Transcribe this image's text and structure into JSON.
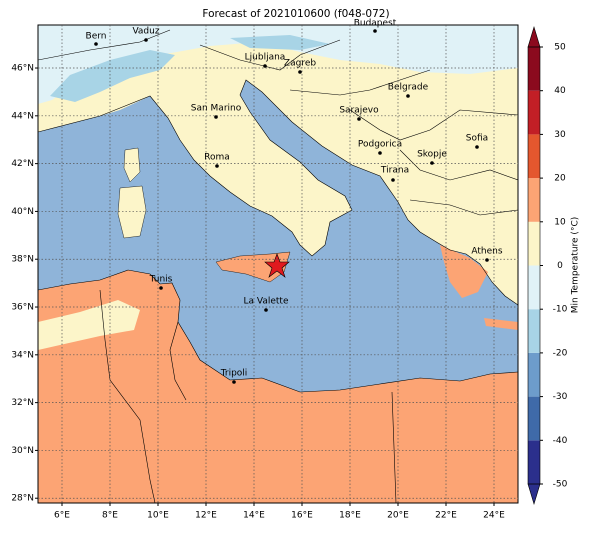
{
  "map": {
    "title": "Forecast of 2021010600 (f048-072)",
    "lonlim": [
      5,
      25
    ],
    "latlim": [
      27.8,
      47.8
    ],
    "lonticks": [
      {
        "value": 6,
        "label": "6°E"
      },
      {
        "value": 8,
        "label": "8°E"
      },
      {
        "value": 10,
        "label": "10°E"
      },
      {
        "value": 12,
        "label": "12°E"
      },
      {
        "value": 14,
        "label": "14°E"
      },
      {
        "value": 16,
        "label": "16°E"
      },
      {
        "value": 18,
        "label": "18°E"
      },
      {
        "value": 20,
        "label": "20°E"
      },
      {
        "value": 22,
        "label": "22°E"
      },
      {
        "value": 24,
        "label": "24°E"
      }
    ],
    "latticks": [
      {
        "value": 28,
        "label": "28°N"
      },
      {
        "value": 30,
        "label": "30°N"
      },
      {
        "value": 32,
        "label": "32°N"
      },
      {
        "value": 34,
        "label": "34°N"
      },
      {
        "value": 36,
        "label": "36°N"
      },
      {
        "value": 38,
        "label": "38°N"
      },
      {
        "value": 40,
        "label": "40°N"
      },
      {
        "value": 42,
        "label": "42°N"
      },
      {
        "value": 44,
        "label": "44°N"
      },
      {
        "value": 46,
        "label": "46°N"
      }
    ],
    "grid": true,
    "cities": [
      "Bern",
      "Vaduz",
      "Budapest",
      "Ljubljana",
      "Zagreb",
      "Belgrade",
      "San Marino",
      "Sarajevo",
      "Sofia",
      "Roma",
      "Podgorica",
      "Skopje",
      "Tirana",
      "Athens",
      "Tunis",
      "La Valette",
      "Tripoli"
    ],
    "colorbar": {
      "label": "Min Temperature (°C)",
      "ticks": [
        -50,
        -40,
        -30,
        -20,
        -10,
        0,
        10,
        20,
        30,
        40,
        50
      ],
      "colors": [
        "#2b2f8c",
        "#3f6aa9",
        "#6d9ccb",
        "#a8d4e6",
        "#e0f2f7",
        "#fcf5c9",
        "#fca474",
        "#e4572e",
        "#c21f26",
        "#8b0a1e"
      ]
    }
  }
}
